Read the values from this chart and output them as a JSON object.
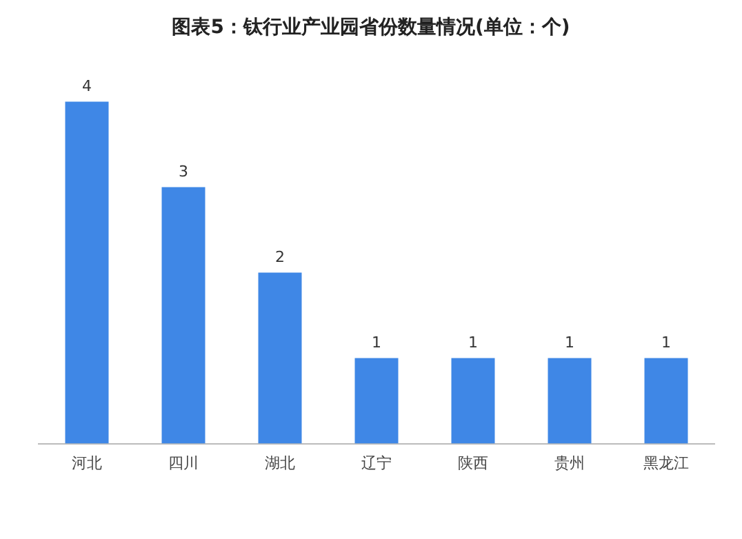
{
  "chart_data": {
    "type": "bar",
    "title": "图表5：钛行业产业园省份数量情况(单位：个)",
    "categories": [
      "河北",
      "四川",
      "湖北",
      "辽宁",
      "陕西",
      "贵州",
      "黑龙江"
    ],
    "values": [
      4,
      3,
      2,
      1,
      1,
      1,
      1
    ],
    "color": "#3f87e6",
    "data_labels": true,
    "grid": false,
    "legend": false,
    "tick_labels": "x"
  }
}
